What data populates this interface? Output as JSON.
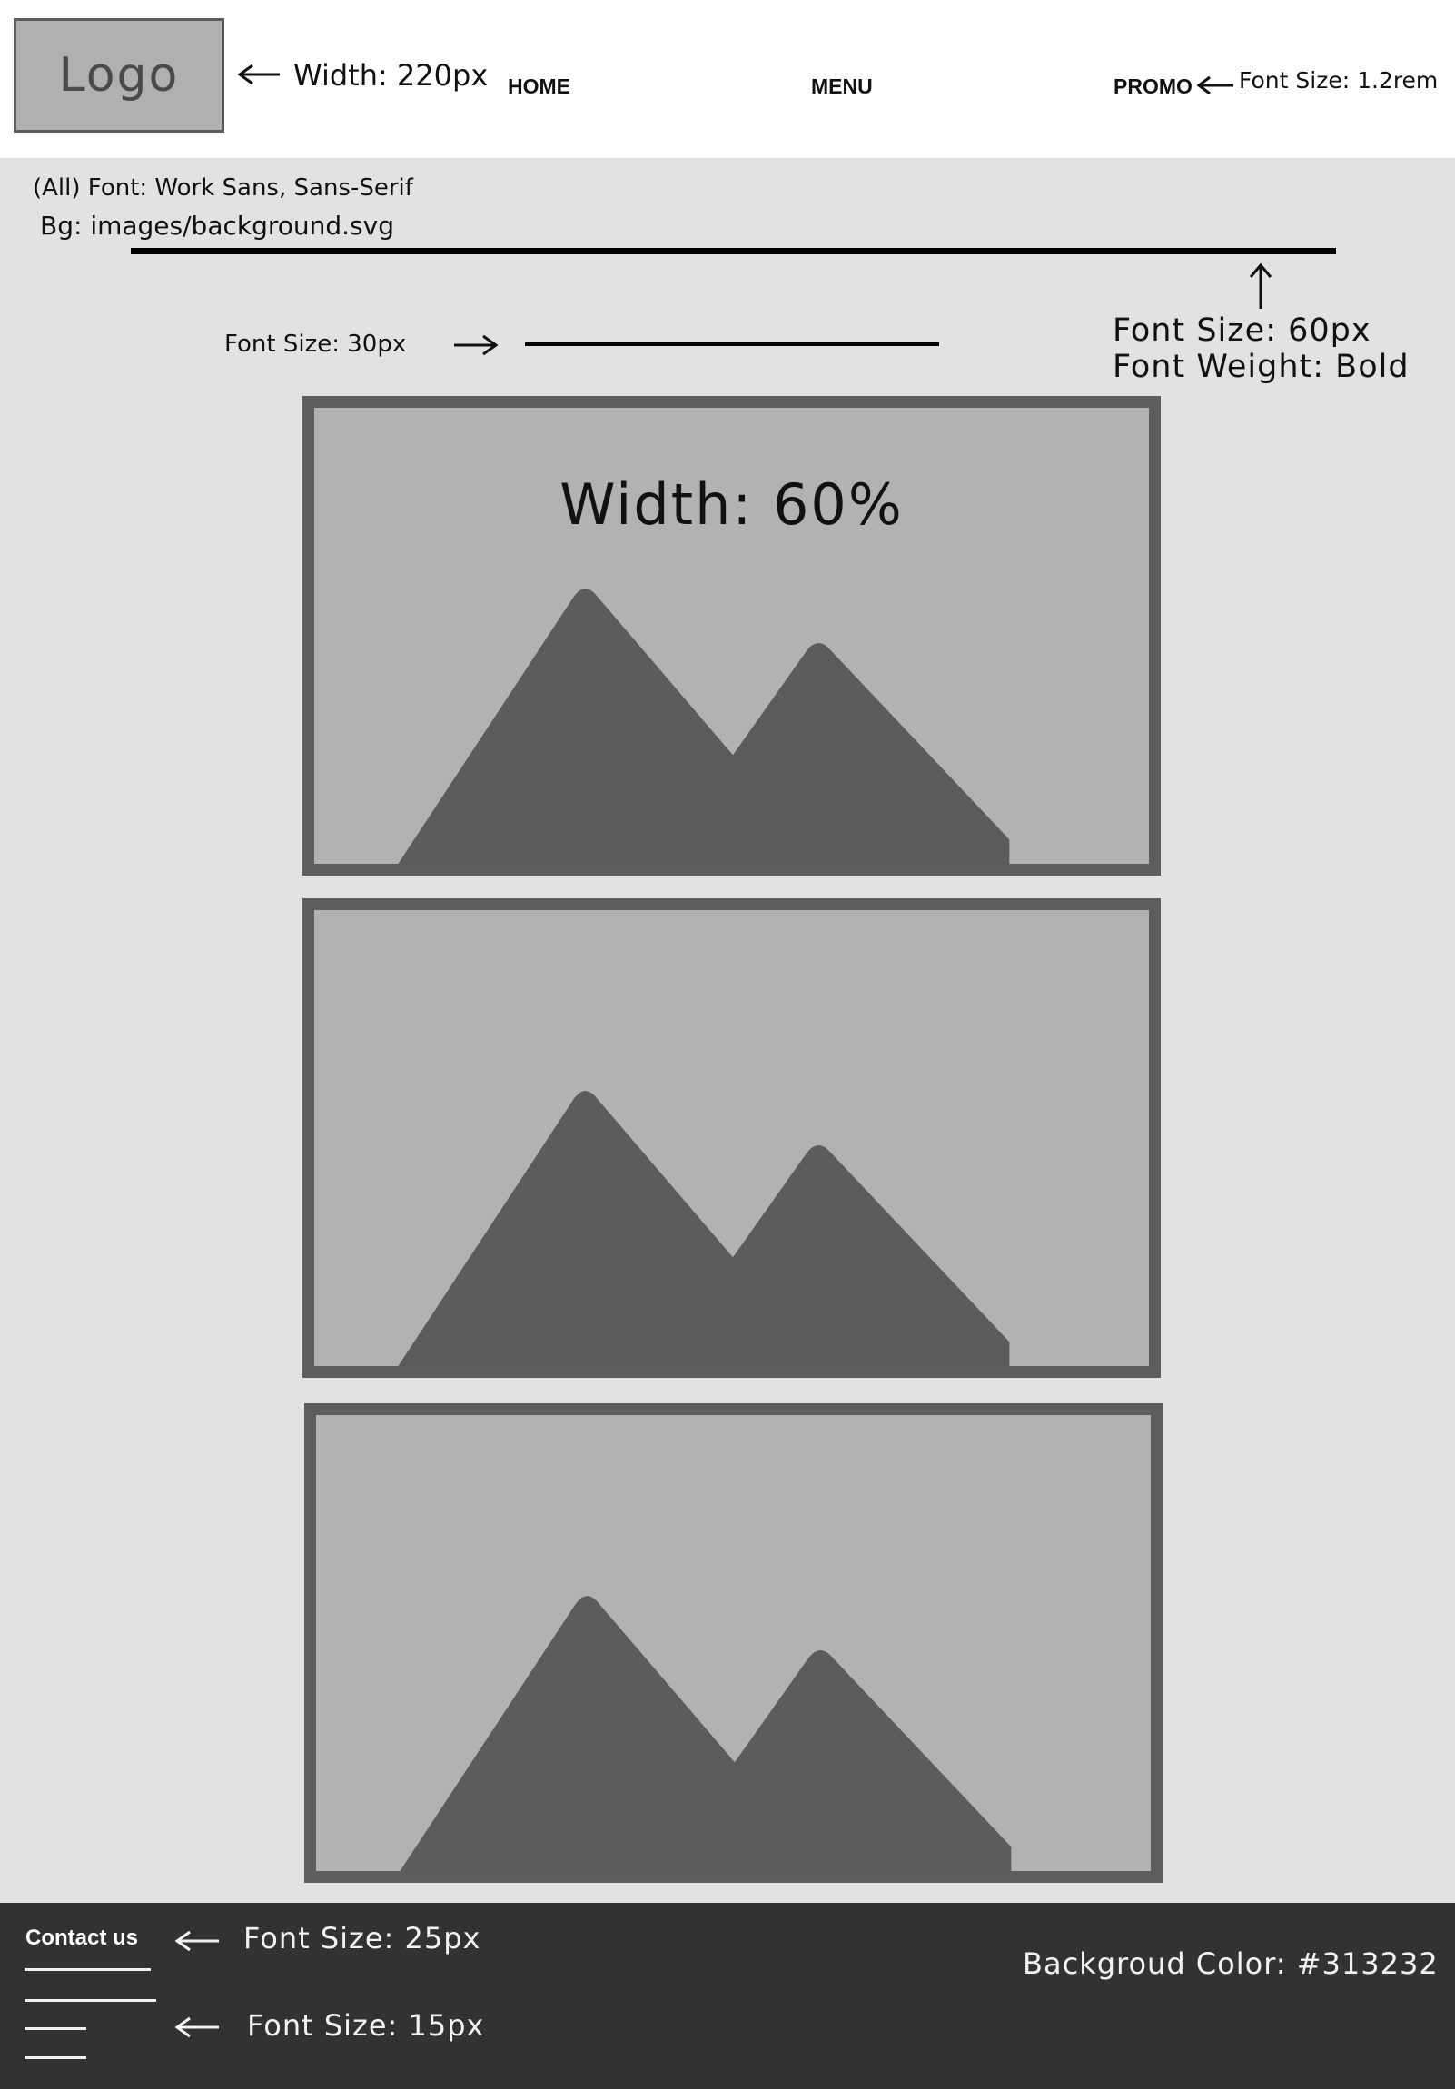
{
  "header": {
    "logo_text": "Logo",
    "logo_width_note": "Width: 220px",
    "nav": [
      "HOME",
      "MENU",
      "PROMO"
    ],
    "nav_font_note": "Font Size: 1.2rem"
  },
  "notes": {
    "font_all": "(All) Font: Work Sans, Sans-Serif",
    "background": "Bg: images/background.svg",
    "heading_size": "Font Size: 60px",
    "heading_weight": "Font Weight: Bold",
    "subheading_size": "Font Size: 30px"
  },
  "cards": [
    {
      "label": "Width: 60%",
      "icon": "image-placeholder-icon"
    },
    {
      "label": "",
      "icon": "image-placeholder-icon"
    },
    {
      "label": "",
      "icon": "image-placeholder-icon"
    }
  ],
  "footer": {
    "contact_label": "Contact us",
    "contact_size_note": "Font Size: 25px",
    "links_size_note": "Font Size: 15px",
    "bg_note": "Backgroud Color: #313232",
    "bg_color": "#313232"
  },
  "colors": {
    "page_bg": "#e3e2e1",
    "card_frame": "#5d5d5d",
    "card_fill": "#b2b2b2",
    "mountain": "#5c5c5c"
  }
}
